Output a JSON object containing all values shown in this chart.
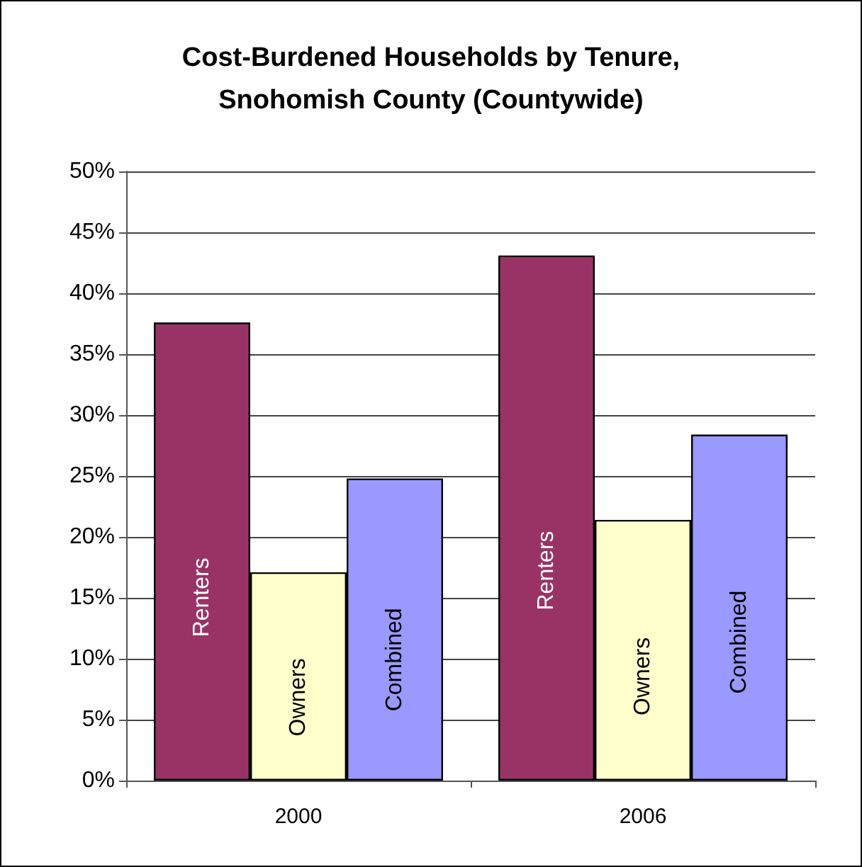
{
  "chart_data": {
    "type": "bar",
    "title": "Cost-Burdened Households by Tenure,\nSnohomish County (Countywide)",
    "categories": [
      "2000",
      "2006"
    ],
    "series": [
      {
        "name": "Renters",
        "color": "#993366",
        "values": [
          37.6,
          43.1
        ]
      },
      {
        "name": "Owners",
        "color": "#ffffcc",
        "values": [
          17.1,
          21.4
        ]
      },
      {
        "name": "Combined",
        "color": "#9999ff",
        "values": [
          24.8,
          28.4
        ]
      }
    ],
    "ylim": [
      0,
      50
    ],
    "yticks": [
      {
        "value": 0,
        "label": "0%"
      },
      {
        "value": 5,
        "label": "5%"
      },
      {
        "value": 10,
        "label": "10%"
      },
      {
        "value": 15,
        "label": "15%"
      },
      {
        "value": 20,
        "label": "20%"
      },
      {
        "value": 25,
        "label": "25%"
      },
      {
        "value": 30,
        "label": "30%"
      },
      {
        "value": 35,
        "label": "35%"
      },
      {
        "value": 40,
        "label": "40%"
      },
      {
        "value": 45,
        "label": "45%"
      },
      {
        "value": 50,
        "label": "50%"
      }
    ],
    "grid": "y"
  }
}
